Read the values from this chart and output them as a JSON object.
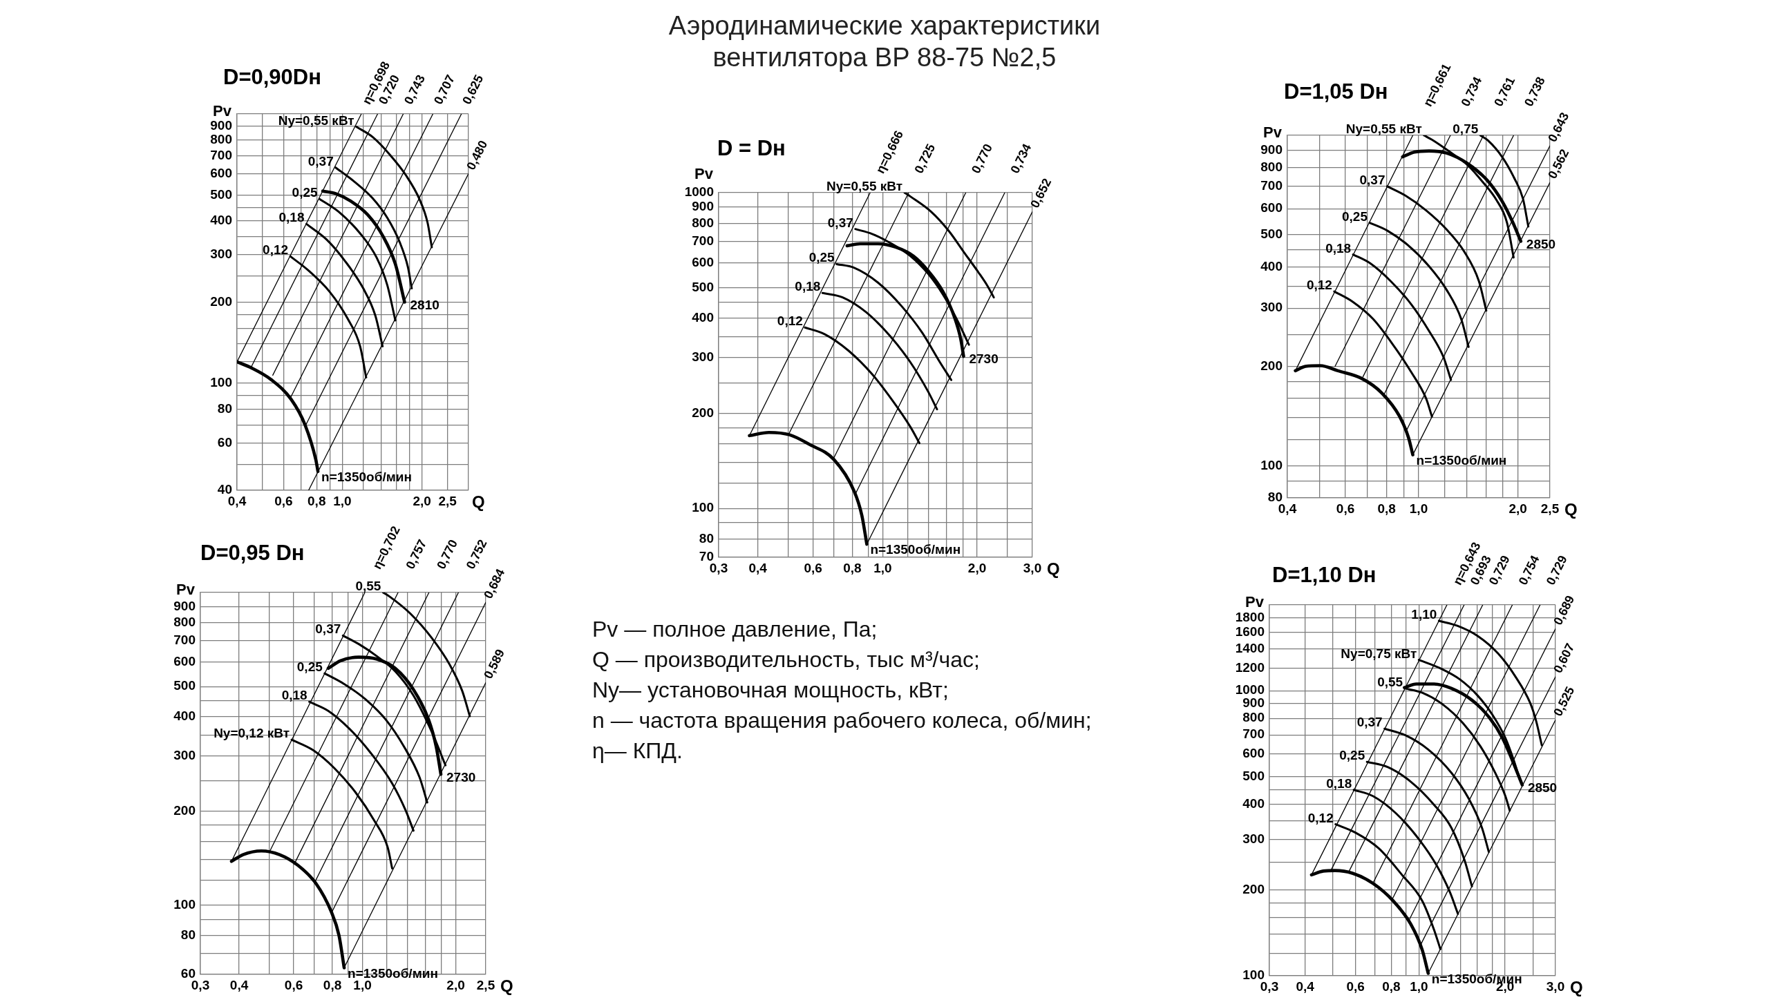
{
  "chart_data": [
    {
      "type": "other",
      "title": "Аэродинамические характеристики вентилятора ВР 88-75 №2,5",
      "annotations": [
        "Pv — полное давление, Па;",
        "Q — производительность, тыс м³/час;",
        "Ny— установочная мощность, кВт;",
        "n — частота вращения рабочего колеса, об/мин;",
        "η— КПД."
      ]
    },
    {
      "type": "line",
      "title": "D=0,90Dн",
      "xlabel": "Q",
      "ylabel": "Pv",
      "log": "xy",
      "grid": true,
      "color": "#000000",
      "xlim": [
        0.4,
        3.0
      ],
      "ylim": [
        40,
        1000
      ],
      "xticks": [
        {
          "value": 0.4,
          "label": "0,4"
        },
        {
          "value": 0.5,
          "label": null
        },
        {
          "value": 0.6,
          "label": "0,6"
        },
        {
          "value": 0.7,
          "label": null
        },
        {
          "value": 0.8,
          "label": "0,8"
        },
        {
          "value": 0.9,
          "label": null
        },
        {
          "value": 1.0,
          "label": "1,0"
        },
        {
          "value": 1.2,
          "label": null
        },
        {
          "value": 1.4,
          "label": null
        },
        {
          "value": 1.6,
          "label": null
        },
        {
          "value": 1.8,
          "label": null
        },
        {
          "value": 2.0,
          "label": "2,0"
        },
        {
          "value": 2.5,
          "label": "2,5"
        },
        {
          "value": 3.0,
          "label": null
        }
      ],
      "yticks": [
        40,
        {
          "value": 50,
          "label": null
        },
        60,
        {
          "value": 70,
          "label": null
        },
        80,
        {
          "value": 90,
          "label": null
        },
        100,
        {
          "value": 120,
          "label": null
        },
        {
          "value": 140,
          "label": null
        },
        {
          "value": 160,
          "label": null
        },
        {
          "value": 180,
          "label": null
        },
        200,
        {
          "value": 250,
          "label": null
        },
        300,
        {
          "value": 350,
          "label": null
        },
        400,
        {
          "value": 450,
          "label": null
        },
        500,
        600,
        700,
        800,
        900,
        {
          "value": 1000,
          "label": null
        }
      ],
      "series": [
        {
          "name": "n=1350об/мин",
          "x": [
            0.4,
            0.453,
            0.539,
            0.641,
            0.723,
            0.794,
            0.809
          ],
          "values": [
            120,
            114,
            103,
            87,
            70,
            52,
            47
          ]
        },
        {
          "name": "η=0,698",
          "x": [
            0.4,
            1.18
          ],
          "values": [
            120,
            1000
          ]
        },
        {
          "name": "0,720",
          "x": [
            0.453,
            1.36
          ],
          "values": [
            115,
            1000
          ]
        },
        {
          "name": "0,743",
          "x": [
            0.546,
            1.7
          ],
          "values": [
            107,
            1000
          ]
        },
        {
          "name": "0,707",
          "x": [
            0.636,
            2.2
          ],
          "values": [
            88,
            1000
          ]
        },
        {
          "name": "0,625",
          "x": [
            0.723,
            2.82
          ],
          "values": [
            69,
            1000
          ]
        },
        {
          "name": "0,480",
          "x": [
            0.746,
            3.0
          ],
          "values": [
            40,
            600
          ]
        },
        {
          "name": "Ny=0,55 кВт",
          "x": [
            1.13,
            1.3,
            1.52,
            1.74,
            1.96,
            2.1,
            2.18
          ],
          "values": [
            896,
            822,
            702,
            592,
            481,
            395,
            320
          ]
        },
        {
          "name": "0,37",
          "x": [
            0.944,
            1.107,
            1.3,
            1.48,
            1.65,
            1.77,
            1.83
          ],
          "values": [
            632,
            562,
            487,
            411,
            333,
            270,
            225
          ]
        },
        {
          "name": "0,25",
          "x": [
            0.821,
            0.969,
            1.168,
            1.35,
            1.48,
            1.587
          ],
          "values": [
            483,
            433,
            360,
            292,
            231,
            171
          ]
        },
        {
          "name": "0,18",
          "x": [
            0.732,
            0.871,
            1.022,
            1.2,
            1.334,
            1.42
          ],
          "values": [
            390,
            342,
            285,
            225,
            178,
            137
          ]
        },
        {
          "name": "0,12",
          "x": [
            0.636,
            0.742,
            0.894,
            1.05,
            1.168,
            1.231
          ],
          "values": [
            296,
            263,
            219,
            173,
            137,
            105
          ]
        },
        {
          "name": "2810",
          "x": [
            0.844,
            0.944,
            1.078,
            1.248,
            1.426,
            1.587,
            1.72
          ],
          "values": [
            517,
            506,
            474,
            422,
            351,
            277,
            200
          ]
        }
      ]
    },
    {
      "type": "line",
      "title": "D = Dн",
      "xlabel": "Q",
      "ylabel": "Pv",
      "log": "xy",
      "grid": true,
      "color": "#000000",
      "xlim": [
        0.3,
        3.0
      ],
      "ylim": [
        70,
        1000
      ],
      "xticks": [
        {
          "value": 0.3,
          "label": "0,3"
        },
        {
          "value": 0.4,
          "label": "0,4"
        },
        {
          "value": 0.5,
          "label": null
        },
        {
          "value": 0.6,
          "label": "0,6"
        },
        {
          "value": 0.7,
          "label": null
        },
        {
          "value": 0.8,
          "label": "0,8"
        },
        {
          "value": 0.9,
          "label": null
        },
        {
          "value": 1.0,
          "label": "1,0"
        },
        {
          "value": 1.2,
          "label": null
        },
        {
          "value": 1.4,
          "label": null
        },
        {
          "value": 1.6,
          "label": null
        },
        {
          "value": 1.8,
          "label": null
        },
        {
          "value": 2.0,
          "label": "2,0"
        },
        {
          "value": 2.5,
          "label": null
        },
        {
          "value": 3.0,
          "label": "3,0"
        }
      ],
      "yticks": [
        70,
        80,
        {
          "value": 90,
          "label": null
        },
        100,
        {
          "value": 120,
          "label": null
        },
        {
          "value": 140,
          "label": null
        },
        {
          "value": 160,
          "label": null
        },
        {
          "value": 180,
          "label": null
        },
        200,
        {
          "value": 250,
          "label": null
        },
        300,
        {
          "value": 350,
          "label": null
        },
        400,
        {
          "value": 450,
          "label": null
        },
        500,
        600,
        700,
        800,
        900,
        1000
      ],
      "series": [
        {
          "name": "n=1350об/мин",
          "x": [
            0.376,
            0.434,
            0.505,
            0.587,
            0.698,
            0.812,
            0.858,
            0.89
          ],
          "values": [
            170,
            174,
            171,
            159,
            143,
            113,
            95,
            77
          ]
        },
        {
          "name": "η=0,666",
          "x": [
            0.376,
            0.912
          ],
          "values": [
            170,
            1000
          ]
        },
        {
          "name": "0,725",
          "x": [
            0.502,
            1.21
          ],
          "values": [
            172,
            1000
          ]
        },
        {
          "name": "0,770",
          "x": [
            0.695,
            1.84
          ],
          "values": [
            143,
            1000
          ]
        },
        {
          "name": "0,734",
          "x": [
            0.818,
            2.45
          ],
          "values": [
            111,
            1000
          ]
        },
        {
          "name": "0,652",
          "x": [
            0.89,
            3.0
          ],
          "values": [
            77,
            870
          ]
        },
        {
          "name": "Ny=0,55 кВт",
          "x": [
            1.174,
            1.226,
            1.427,
            1.625,
            1.811,
            2.02,
            2.154,
            2.26
          ],
          "values": [
            1000,
            972,
            870,
            756,
            650,
            559,
            508,
            466
          ]
        },
        {
          "name": "0,37",
          "x": [
            0.818,
            0.926,
            1.054,
            1.226,
            1.397,
            1.556,
            1.734,
            1.883
          ],
          "values": [
            767,
            740,
            694,
            630,
            553,
            476,
            392,
            330
          ]
        },
        {
          "name": "0,25",
          "x": [
            0.713,
            0.812,
            0.966,
            1.149,
            1.337,
            1.523,
            1.654
          ],
          "values": [
            594,
            578,
            519,
            437,
            360,
            290,
            255
          ]
        },
        {
          "name": "0,18",
          "x": [
            0.643,
            0.745,
            0.886,
            1.054,
            1.226,
            1.397,
            1.49
          ],
          "values": [
            481,
            466,
            418,
            352,
            290,
            234,
            206
          ]
        },
        {
          "name": "0,12",
          "x": [
            0.565,
            0.654,
            0.778,
            0.926,
            1.077,
            1.226,
            1.309
          ],
          "values": [
            374,
            356,
            316,
            266,
            219,
            181,
            161
          ]
        },
        {
          "name": "2730",
          "x": [
            0.77,
            0.848,
            0.966,
            1.1,
            1.253,
            1.397,
            1.556,
            1.697,
            1.772,
            1.811
          ],
          "values": [
            679,
            689,
            689,
            672,
            630,
            565,
            486,
            401,
            345,
            303
          ]
        }
      ]
    },
    {
      "type": "line",
      "title": "D=1,05 Dн",
      "xlabel": "Q",
      "ylabel": "Pv",
      "log": "xy",
      "grid": true,
      "color": "#000000",
      "xlim": [
        0.4,
        2.5
      ],
      "ylim": [
        80,
        1000
      ],
      "xticks": [
        {
          "value": 0.4,
          "label": "0,4"
        },
        {
          "value": 0.5,
          "label": null
        },
        {
          "value": 0.6,
          "label": "0,6"
        },
        {
          "value": 0.7,
          "label": null
        },
        {
          "value": 0.8,
          "label": "0,8"
        },
        {
          "value": 0.9,
          "label": null
        },
        {
          "value": 1.0,
          "label": "1,0"
        },
        {
          "value": 1.2,
          "label": null
        },
        {
          "value": 1.4,
          "label": null
        },
        {
          "value": 1.6,
          "label": null
        },
        {
          "value": 1.8,
          "label": null
        },
        {
          "value": 2.0,
          "label": "2,0"
        },
        {
          "value": 2.5,
          "label": "2,5"
        }
      ],
      "yticks": [
        80,
        {
          "value": 90,
          "label": null
        },
        100,
        {
          "value": 120,
          "label": null
        },
        {
          "value": 140,
          "label": null
        },
        {
          "value": 160,
          "label": null
        },
        {
          "value": 180,
          "label": null
        },
        200,
        {
          "value": 250,
          "label": null
        },
        300,
        {
          "value": 350,
          "label": null
        },
        400,
        {
          "value": 450,
          "label": null
        },
        500,
        600,
        700,
        800,
        900,
        {
          "value": 1000,
          "label": null
        }
      ],
      "series": [
        {
          "name": "n=1350об/мин",
          "x": [
            0.423,
            0.454,
            0.503,
            0.569,
            0.671,
            0.774,
            0.876,
            0.931,
            0.96
          ],
          "values": [
            194,
            200,
            201,
            194,
            184,
            166,
            141,
            122,
            108
          ]
        },
        {
          "name": "η=0,661",
          "x": [
            0.423,
            0.96
          ],
          "values": [
            194,
            1000
          ]
        },
        {
          "name": "0,734",
          "x": [
            0.558,
            1.248
          ],
          "values": [
            200,
            1000
          ]
        },
        {
          "name": "0,761",
          "x": [
            0.678,
            1.572
          ],
          "values": [
            186,
            1000
          ]
        },
        {
          "name": "0,738",
          "x": [
            0.787,
            1.94
          ],
          "values": [
            165,
            1000
          ]
        },
        {
          "name": "0,643",
          "x": [
            0.922,
            2.5
          ],
          "values": [
            129,
            930
          ]
        },
        {
          "name": "0,562",
          "x": [
            0.96,
            2.5
          ],
          "values": [
            108,
            720
          ]
        },
        {
          "name": "Ny=0,55 кВт",
          "x": [
            1.038,
            1.097,
            1.24,
            1.403,
            1.554,
            1.722,
            1.851,
            1.94
          ],
          "values": [
            1000,
            970,
            893,
            815,
            728,
            637,
            546,
            427
          ]
        },
        {
          "name": "0,75",
          "x": [
            1.538,
            1.62,
            1.794,
            1.948,
            2.07,
            2.15
          ],
          "values": [
            1000,
            966,
            858,
            743,
            644,
            530
          ]
        },
        {
          "name": "0,37",
          "x": [
            0.803,
            0.912,
            1.053,
            1.215,
            1.374,
            1.523,
            1.603
          ],
          "values": [
            701,
            657,
            593,
            519,
            445,
            362,
            295
          ]
        },
        {
          "name": "0,25",
          "x": [
            0.71,
            0.806,
            0.931,
            1.075,
            1.215,
            1.346,
            1.417
          ],
          "values": [
            544,
            514,
            464,
            402,
            341,
            278,
            229
          ]
        },
        {
          "name": "0,18",
          "x": [
            0.633,
            0.713,
            0.823,
            0.95,
            1.075,
            1.19,
            1.253
          ],
          "values": [
            436,
            410,
            362,
            308,
            256,
            213,
            182
          ]
        },
        {
          "name": "0,12",
          "x": [
            0.555,
            0.63,
            0.728,
            0.84,
            0.95,
            1.053,
            1.097
          ],
          "values": [
            337,
            314,
            278,
            231,
            192,
            160,
            141
          ]
        },
        {
          "name": "2850",
          "x": [
            0.894,
            0.97,
            1.075,
            1.215,
            1.403,
            1.62,
            1.794,
            1.928,
            2.04
          ],
          "values": [
            861,
            890,
            897,
            884,
            823,
            728,
            630,
            546,
            478
          ]
        }
      ]
    },
    {
      "type": "line",
      "title": "D=0,95 Dн",
      "xlabel": "Q",
      "ylabel": "Pv",
      "log": "xy",
      "grid": true,
      "color": "#000000",
      "xlim": [
        0.3,
        2.5
      ],
      "ylim": [
        60,
        1000
      ],
      "xticks": [
        {
          "value": 0.3,
          "label": "0,3"
        },
        {
          "value": 0.4,
          "label": "0,4"
        },
        {
          "value": 0.5,
          "label": null
        },
        {
          "value": 0.6,
          "label": "0,6"
        },
        {
          "value": 0.7,
          "label": null
        },
        {
          "value": 0.8,
          "label": "0,8"
        },
        {
          "value": 0.9,
          "label": null
        },
        {
          "value": 1.0,
          "label": "1,0"
        },
        {
          "value": 1.2,
          "label": null
        },
        {
          "value": 1.4,
          "label": null
        },
        {
          "value": 1.6,
          "label": null
        },
        {
          "value": 1.8,
          "label": null
        },
        {
          "value": 2.0,
          "label": "2,0"
        },
        {
          "value": 2.5,
          "label": "2,5"
        }
      ],
      "yticks": [
        60,
        {
          "value": 70,
          "label": null
        },
        80,
        {
          "value": 90,
          "label": null
        },
        100,
        {
          "value": 120,
          "label": null
        },
        {
          "value": 140,
          "label": null
        },
        {
          "value": 160,
          "label": null
        },
        {
          "value": 180,
          "label": null
        },
        200,
        {
          "value": 250,
          "label": null
        },
        300,
        {
          "value": 350,
          "label": null
        },
        400,
        {
          "value": 450,
          "label": null
        },
        500,
        600,
        700,
        800,
        900,
        {
          "value": 1000,
          "label": null
        }
      ],
      "series": [
        {
          "name": "n=1350об/мин",
          "x": [
            0.378,
            0.412,
            0.472,
            0.54,
            0.619,
            0.709,
            0.794,
            0.84,
            0.873
          ],
          "values": [
            138,
            145,
            149,
            145,
            134,
            117,
            95,
            80,
            63
          ]
        },
        {
          "name": "η=0,702",
          "x": [
            0.378,
            1.018
          ],
          "values": [
            138,
            1000
          ]
        },
        {
          "name": "0,757",
          "x": [
            0.503,
            1.303
          ],
          "values": [
            149,
            1000
          ]
        },
        {
          "name": "0,770",
          "x": [
            0.602,
            1.639
          ],
          "values": [
            135,
            1000
          ]
        },
        {
          "name": "0,752",
          "x": [
            0.704,
            2.04
          ],
          "values": [
            119,
            1000
          ]
        },
        {
          "name": "0,684",
          "x": [
            0.797,
            2.5
          ],
          "values": [
            95,
            930
          ]
        },
        {
          "name": "0,589",
          "x": [
            0.873,
            2.5
          ],
          "values": [
            63,
            515
          ]
        },
        {
          "name": "0,55",
          "x": [
            1.166,
            1.219,
            1.429,
            1.674,
            1.917,
            2.099,
            2.22
          ],
          "values": [
            1000,
            973,
            855,
            715,
            585,
            484,
            402
          ]
        },
        {
          "name": "0,37",
          "x": [
            0.865,
            0.973,
            1.114,
            1.276,
            1.461,
            1.674,
            1.853
          ],
          "values": [
            728,
            684,
            625,
            559,
            468,
            358,
            280
          ]
        },
        {
          "name": "0,25",
          "x": [
            0.755,
            0.869,
            1.018,
            1.192,
            1.365,
            1.529,
            1.618
          ],
          "values": [
            551,
            511,
            457,
            391,
            320,
            256,
            213
          ]
        },
        {
          "name": "0,18",
          "x": [
            0.674,
            0.776,
            0.909,
            1.065,
            1.247,
            1.381,
            1.461
          ],
          "values": [
            447,
            418,
            366,
            306,
            245,
            200,
            173
          ]
        },
        {
          "name": "Ny=0,12 кВт",
          "x": [
            0.591,
            0.693,
            0.812,
            0.951,
            1.089,
            1.206,
            1.247
          ],
          "values": [
            338,
            313,
            274,
            229,
            187,
            153,
            131
          ]
        },
        {
          "name": "2730",
          "x": [
            0.776,
            0.849,
            0.973,
            1.114,
            1.276,
            1.461,
            1.636,
            1.731,
            1.791
          ],
          "values": [
            572,
            605,
            621,
            612,
            572,
            489,
            391,
            320,
            262
          ]
        }
      ]
    },
    {
      "type": "line",
      "title": "D=1,10 Dн",
      "xlabel": "Q",
      "ylabel": "Pv",
      "log": "xy",
      "grid": true,
      "color": "#000000",
      "xlim": [
        0.3,
        3.0
      ],
      "ylim": [
        100,
        2000
      ],
      "xticks": [
        {
          "value": 0.3,
          "label": "0,3"
        },
        {
          "value": 0.4,
          "label": "0,4"
        },
        {
          "value": 0.5,
          "label": null
        },
        {
          "value": 0.6,
          "label": "0,6"
        },
        {
          "value": 0.7,
          "label": null
        },
        {
          "value": 0.8,
          "label": "0,8"
        },
        {
          "value": 0.9,
          "label": null
        },
        {
          "value": 1.0,
          "label": "1,0"
        },
        {
          "value": 1.2,
          "label": null
        },
        {
          "value": 1.4,
          "label": null
        },
        {
          "value": 1.6,
          "label": null
        },
        {
          "value": 1.8,
          "label": null
        },
        {
          "value": 2.0,
          "label": "2,0"
        },
        {
          "value": 2.5,
          "label": null
        },
        {
          "value": 3.0,
          "label": "3,0"
        }
      ],
      "yticks": [
        100,
        {
          "value": 120,
          "label": null
        },
        {
          "value": 140,
          "label": null
        },
        {
          "value": 160,
          "label": null
        },
        {
          "value": 180,
          "label": null
        },
        200,
        {
          "value": 250,
          "label": null
        },
        300,
        {
          "value": 350,
          "label": null
        },
        400,
        {
          "value": 450,
          "label": null
        },
        500,
        600,
        700,
        800,
        900,
        1000,
        1200,
        1400,
        1600,
        1800,
        {
          "value": 2000,
          "label": null
        }
      ],
      "series": [
        {
          "name": "n=1350об/мин",
          "x": [
            0.421,
            0.463,
            0.509,
            0.585,
            0.69,
            0.813,
            0.935,
            1.027,
            1.077
          ],
          "values": [
            226,
            233,
            234,
            229,
            211,
            183,
            152,
            123,
            102
          ]
        },
        {
          "name": "η=0,643",
          "x": [
            0.421,
            1.252
          ],
          "values": [
            226,
            2000
          ]
        },
        {
          "name": "0,693",
          "x": [
            0.491,
            1.438
          ],
          "values": [
            233,
            2000
          ]
        },
        {
          "name": "0,729",
          "x": [
            0.569,
            1.67
          ],
          "values": [
            232,
            2000
          ]
        },
        {
          "name": "0,754",
          "x": [
            0.69,
            2.12
          ],
          "values": [
            211,
            2000
          ]
        },
        {
          "name": "0,729",
          "x": [
            0.803,
            2.65
          ],
          "values": [
            184,
            2000
          ]
        },
        {
          "name": "0,689",
          "x": [
            0.918,
            3.0
          ],
          "values": [
            155,
            1650
          ]
        },
        {
          "name": "0,607",
          "x": [
            1.008,
            3.0
          ],
          "values": [
            127,
            1120
          ]
        },
        {
          "name": "0,525",
          "x": [
            1.077,
            3.0
          ],
          "values": [
            102,
            790
          ]
        },
        {
          "name": "1,10",
          "x": [
            1.174,
            1.361,
            1.604,
            1.89,
            2.176,
            2.447,
            2.564,
            2.687
          ],
          "values": [
            1759,
            1690,
            1556,
            1351,
            1119,
            906,
            787,
            644
          ]
        },
        {
          "name": "Ny=0,75 кВт",
          "x": [
            0.999,
            1.182,
            1.393,
            1.604,
            1.804,
            2.004,
            2.15,
            2.253
          ],
          "values": [
            1283,
            1201,
            1094,
            961,
            825,
            683,
            566,
            486
          ]
        },
        {
          "name": "0,55",
          "x": [
            0.893,
            1.027,
            1.211,
            1.427,
            1.642,
            1.847,
            2.004,
            2.076
          ],
          "values": [
            1019,
            984,
            895,
            768,
            637,
            515,
            427,
            380
          ]
        },
        {
          "name": "0,37",
          "x": [
            0.758,
            0.893,
            1.077,
            1.299,
            1.495,
            1.661,
            1.754
          ],
          "values": [
            736,
            699,
            622,
            515,
            417,
            330,
            272
          ]
        },
        {
          "name": "0,25",
          "x": [
            0.658,
            0.776,
            0.935,
            1.129,
            1.299,
            1.444,
            1.531
          ],
          "values": [
            563,
            540,
            480,
            398,
            330,
            254,
            206
          ]
        },
        {
          "name": "0,18",
          "x": [
            0.592,
            0.69,
            0.832,
            1.003,
            1.155,
            1.284,
            1.368
          ],
          "values": [
            449,
            427,
            371,
            300,
            243,
            196,
            165
          ]
        },
        {
          "name": "0,12",
          "x": [
            0.511,
            0.599,
            0.723,
            0.872,
            1.027,
            1.129,
            1.188
          ],
          "values": [
            340,
            318,
            280,
            226,
            183,
            145,
            124
          ]
        },
        {
          "name": "2850",
          "x": [
            0.889,
            0.98,
            1.129,
            1.299,
            1.531,
            1.762,
            1.958,
            2.126,
            2.296
          ],
          "values": [
            1026,
            1056,
            1056,
            1019,
            927,
            805,
            683,
            566,
            467
          ]
        }
      ]
    }
  ]
}
